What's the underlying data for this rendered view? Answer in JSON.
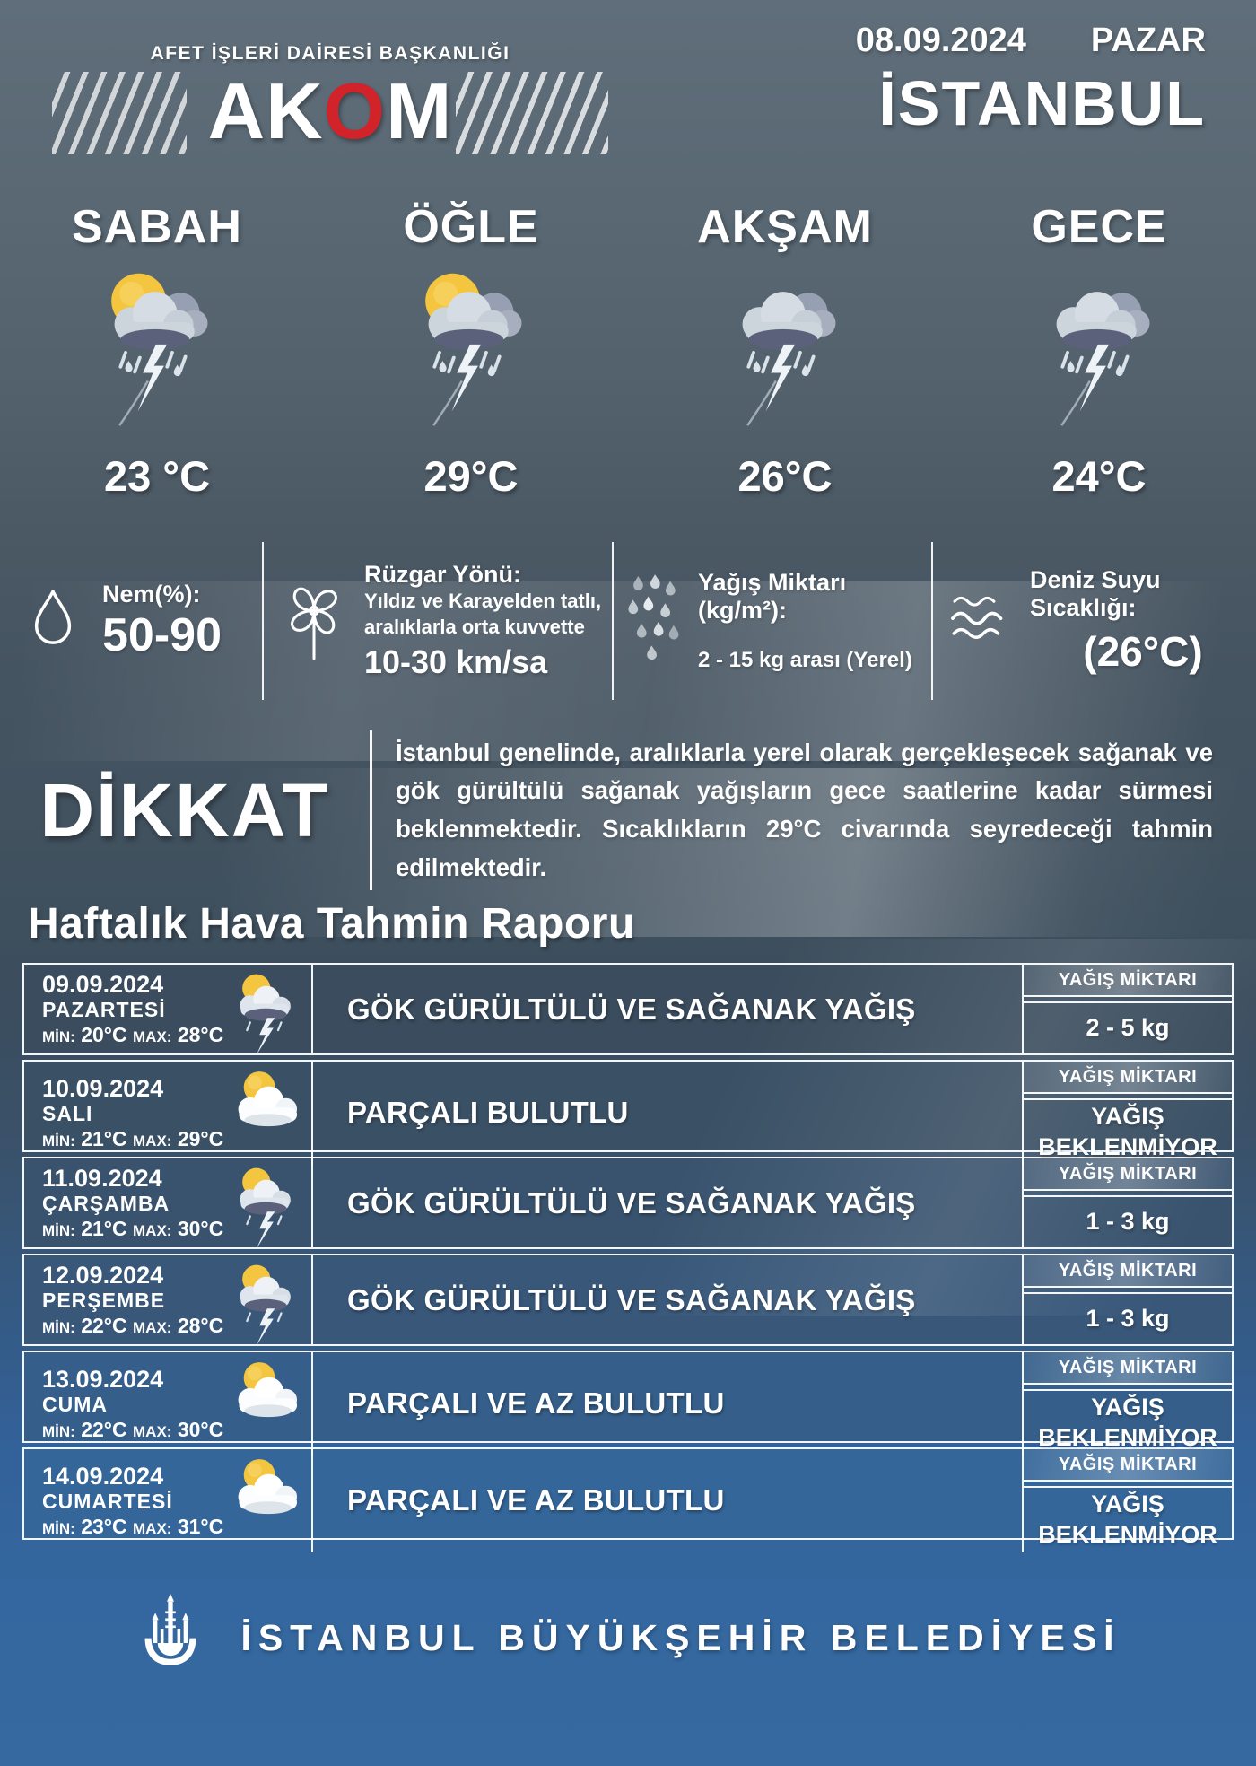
{
  "header": {
    "agency": "AFET İŞLERİ DAİRESİ BAŞKANLIĞI",
    "logo_ak": "AK",
    "logo_o": "O",
    "logo_m": "M",
    "date": "08.09.2024",
    "weekday": "PAZAR",
    "city": "İSTANBUL"
  },
  "periods": [
    {
      "label": "SABAH",
      "temp": "23 °C",
      "icon": "sun-storm"
    },
    {
      "label": "ÖĞLE",
      "temp": "29°C",
      "icon": "sun-storm"
    },
    {
      "label": "AKŞAM",
      "temp": "26°C",
      "icon": "storm"
    },
    {
      "label": "GECE",
      "temp": "24°C",
      "icon": "storm"
    }
  ],
  "metrics": [
    {
      "icon": "droplet",
      "label": "Nem(%):",
      "value": "50-90"
    },
    {
      "icon": "pinwheel",
      "label": "Rüzgar Yönü:",
      "desc": [
        "Yıldız ve Karayelden tatlı,",
        "aralıklarla orta kuvvette"
      ],
      "value": "10-30 km/sa"
    },
    {
      "icon": "raindrops",
      "label": "Yağış Miktarı (kg/m²):",
      "value": "2 - 15 kg arası (Yerel)"
    },
    {
      "icon": "waves",
      "label": "Deniz Suyu Sıcaklığı:",
      "value": "(26°C)"
    }
  ],
  "warning": {
    "title": "DİKKAT",
    "text": "İstanbul genelinde, aralıklarla yerel olarak gerçekleşecek sağanak ve gök gürültülü sağanak yağışların gece saatlerine kadar sürmesi beklenmektedir. Sıcaklıkların 29°C civarında seyredeceği tahmin edilmektedir."
  },
  "weekly": {
    "title": "Haftalık Hava Tahmin Raporu",
    "amount_header": "YAĞIŞ MİKTARI",
    "rows": [
      {
        "date": "09.09.2024",
        "day": "PAZARTESİ",
        "min_label": "MİN:",
        "min_value": "20°C",
        "max_label": "MAX:",
        "max_value": "28°C",
        "icon": "sun-storm-small",
        "condition": "GÖK GÜRÜLTÜLÜ VE SAĞANAK YAĞIŞ",
        "amount": "2 - 5 kg"
      },
      {
        "date": "10.09.2024",
        "day": "SALI",
        "min_label": "MİN:",
        "min_value": "21°C",
        "max_label": "MAX:",
        "max_value": "29°C",
        "icon": "partly-cloudy",
        "condition": "PARÇALI BULUTLU",
        "amount": "YAĞIŞ BEKLENMİYOR"
      },
      {
        "date": "11.09.2024",
        "day": "ÇARŞAMBA",
        "min_label": "MİN:",
        "min_value": "21°C",
        "max_label": "MAX:",
        "max_value": "30°C",
        "icon": "sun-storm-small",
        "condition": "GÖK GÜRÜLTÜLÜ VE SAĞANAK YAĞIŞ",
        "amount": "1 - 3 kg"
      },
      {
        "date": "12.09.2024",
        "day": "PERŞEMBE",
        "min_label": "MİN:",
        "min_value": "22°C",
        "max_label": "MAX:",
        "max_value": "28°C",
        "icon": "sun-storm-small",
        "condition": "GÖK GÜRÜLTÜLÜ VE SAĞANAK YAĞIŞ",
        "amount": "1 - 3 kg"
      },
      {
        "date": "13.09.2024",
        "day": "CUMA",
        "min_label": "MİN:",
        "min_value": "22°C",
        "max_label": "MAX:",
        "max_value": "30°C",
        "icon": "partly-cloudy",
        "condition": "PARÇALI VE AZ BULUTLU",
        "amount": "YAĞIŞ BEKLENMİYOR"
      },
      {
        "date": "14.09.2024",
        "day": "CUMARTESİ",
        "min_label": "MİN:",
        "min_value": "23°C",
        "max_label": "MAX:",
        "max_value": "31°C",
        "icon": "partly-cloudy",
        "condition": "PARÇALI VE AZ BULUTLU",
        "amount": "YAĞIŞ BEKLENMİYOR"
      }
    ]
  },
  "footer": {
    "municipality": "İSTANBUL BÜYÜKŞEHİR BELEDİYESİ"
  },
  "colors": {
    "accent_red": "#d2232a",
    "sun_yellow": "#f4c53f",
    "deep_blue": "#35699f",
    "slate_gray": "#5f6e7a"
  }
}
